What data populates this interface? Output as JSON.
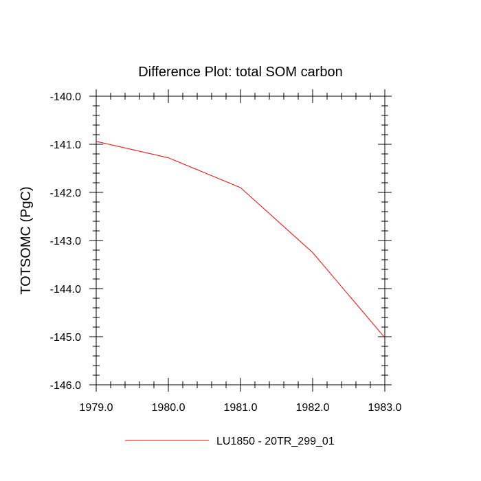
{
  "chart_data": {
    "type": "line",
    "title": "Difference Plot: total SOM carbon",
    "xlabel": "",
    "ylabel": "TOTSOMC  (PgC)",
    "xlim": [
      1979.0,
      1983.0
    ],
    "ylim": [
      -146.0,
      -140.0
    ],
    "xticks": [
      1979.0,
      1980.0,
      1981.0,
      1982.0,
      1983.0
    ],
    "xtick_labels": [
      "1979.0",
      "1980.0",
      "1981.0",
      "1982.0",
      "1983.0"
    ],
    "yticks": [
      -140.0,
      -141.0,
      -142.0,
      -143.0,
      -144.0,
      -145.0,
      -146.0
    ],
    "ytick_labels": [
      "-140.0",
      "-141.0",
      "-142.0",
      "-143.0",
      "-144.0",
      "-145.0",
      "-146.0"
    ],
    "grid": false,
    "legend_position": "bottom-center",
    "series": [
      {
        "name": "LU1850 - 20TR_299_01",
        "color": "#ff0000",
        "x": [
          1979.0,
          1980.0,
          1981.0,
          1982.0,
          1983.0
        ],
        "values": [
          -140.94,
          -141.28,
          -141.9,
          -143.25,
          -145.02
        ]
      }
    ]
  }
}
